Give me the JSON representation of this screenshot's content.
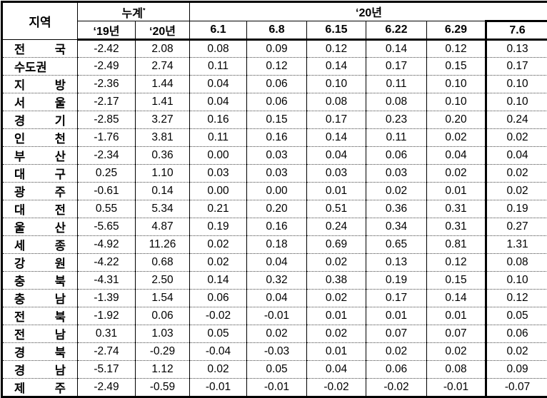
{
  "header": {
    "region": "지역",
    "cumulative": {
      "label": "누계",
      "note_mark": "*",
      "sub": [
        "‘19년",
        "‘20년"
      ]
    },
    "year2020": {
      "label": "‘20년",
      "sub": [
        "6.1",
        "6.8",
        "6.15",
        "6.22",
        "6.29",
        "7.6"
      ]
    }
  },
  "rows": [
    {
      "region": "전 국",
      "values": [
        "-2.42",
        "2.08",
        "0.08",
        "0.09",
        "0.12",
        "0.14",
        "0.12",
        "0.13"
      ]
    },
    {
      "region": "수도권",
      "values": [
        "-2.49",
        "2.74",
        "0.11",
        "0.12",
        "0.14",
        "0.17",
        "0.15",
        "0.17"
      ]
    },
    {
      "region": "지 방",
      "values": [
        "-2.36",
        "1.44",
        "0.04",
        "0.06",
        "0.10",
        "0.11",
        "0.10",
        "0.10"
      ]
    },
    {
      "region": "서 울",
      "values": [
        "-2.17",
        "1.41",
        "0.04",
        "0.06",
        "0.08",
        "0.08",
        "0.10",
        "0.10"
      ]
    },
    {
      "region": "경 기",
      "values": [
        "-2.85",
        "3.27",
        "0.16",
        "0.15",
        "0.17",
        "0.23",
        "0.20",
        "0.24"
      ]
    },
    {
      "region": "인 천",
      "values": [
        "-1.76",
        "3.81",
        "0.11",
        "0.16",
        "0.14",
        "0.11",
        "0.02",
        "0.02"
      ]
    },
    {
      "region": "부 산",
      "values": [
        "-2.34",
        "0.36",
        "0.00",
        "0.03",
        "0.04",
        "0.06",
        "0.04",
        "0.04"
      ]
    },
    {
      "region": "대 구",
      "values": [
        "0.25",
        "1.10",
        "0.03",
        "0.03",
        "0.03",
        "0.03",
        "0.02",
        "0.02"
      ]
    },
    {
      "region": "광 주",
      "values": [
        "-0.61",
        "0.14",
        "0.00",
        "0.00",
        "0.01",
        "0.02",
        "0.01",
        "0.02"
      ]
    },
    {
      "region": "대 전",
      "values": [
        "0.55",
        "5.34",
        "0.21",
        "0.20",
        "0.51",
        "0.36",
        "0.31",
        "0.19"
      ]
    },
    {
      "region": "울 산",
      "values": [
        "-5.65",
        "4.87",
        "0.19",
        "0.16",
        "0.24",
        "0.34",
        "0.31",
        "0.27"
      ]
    },
    {
      "region": "세 종",
      "values": [
        "-4.92",
        "11.26",
        "0.02",
        "0.18",
        "0.69",
        "0.65",
        "0.81",
        "1.31"
      ]
    },
    {
      "region": "강 원",
      "values": [
        "-4.22",
        "0.68",
        "0.02",
        "0.04",
        "0.02",
        "0.13",
        "0.12",
        "0.08"
      ]
    },
    {
      "region": "충 북",
      "values": [
        "-4.31",
        "2.50",
        "0.14",
        "0.32",
        "0.38",
        "0.19",
        "0.15",
        "0.10"
      ]
    },
    {
      "region": "충 남",
      "values": [
        "-1.39",
        "1.54",
        "0.06",
        "0.04",
        "0.02",
        "0.17",
        "0.14",
        "0.12"
      ]
    },
    {
      "region": "전 북",
      "values": [
        "-1.92",
        "0.06",
        "-0.02",
        "-0.01",
        "0.01",
        "0.01",
        "0.01",
        "0.05"
      ]
    },
    {
      "region": "전 남",
      "values": [
        "0.31",
        "1.03",
        "0.05",
        "0.02",
        "0.02",
        "0.07",
        "0.07",
        "0.06"
      ]
    },
    {
      "region": "경 북",
      "values": [
        "-2.74",
        "-0.29",
        "-0.04",
        "-0.03",
        "0.01",
        "0.02",
        "0.02",
        "0.02"
      ]
    },
    {
      "region": "경 남",
      "values": [
        "-5.17",
        "1.12",
        "0.02",
        "0.05",
        "0.04",
        "0.06",
        "0.08",
        "0.09"
      ]
    },
    {
      "region": "제 주",
      "values": [
        "-2.49",
        "-0.59",
        "-0.01",
        "-0.01",
        "-0.02",
        "-0.02",
        "-0.01",
        "-0.07"
      ]
    }
  ]
}
